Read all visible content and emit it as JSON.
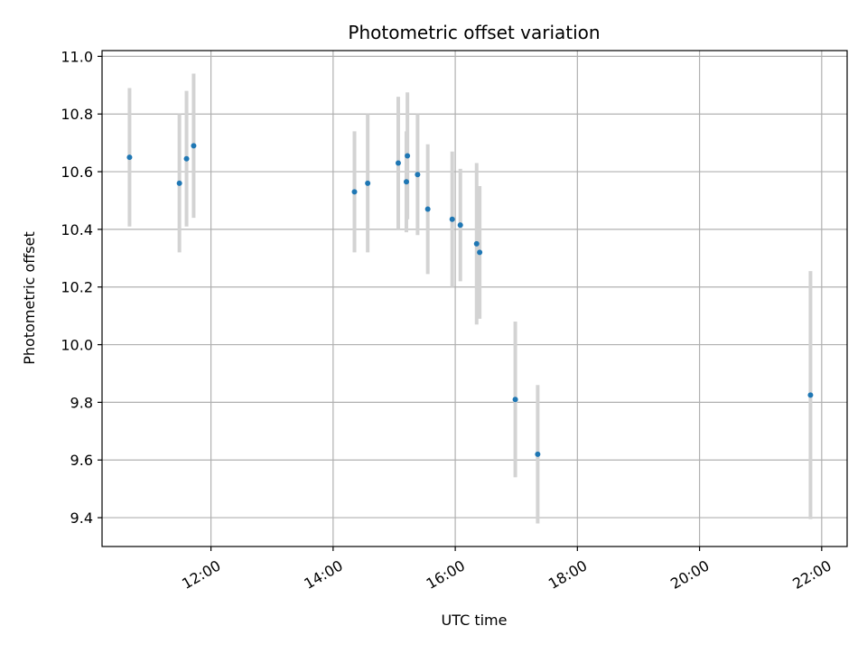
{
  "chart_data": {
    "type": "scatter",
    "title": "Photometric offset variation",
    "xlabel": "UTC time",
    "ylabel": "Photometric offset",
    "x_axis_type": "time-of-day",
    "xlim": [
      "10:13",
      "22:25"
    ],
    "ylim": [
      9.3,
      11.02
    ],
    "x_ticks": [
      "12:00",
      "14:00",
      "16:00",
      "18:00",
      "20:00",
      "22:00"
    ],
    "y_ticks": [
      9.4,
      9.6,
      9.8,
      10.0,
      10.2,
      10.4,
      10.6,
      10.8,
      11.0
    ],
    "grid": true,
    "legend": "none",
    "marker_color": "#1f77b4",
    "errorbar_color": "#d3d3d3",
    "series": [
      {
        "points": [
          {
            "x": "10:40",
            "y": 10.65,
            "err": 0.24
          },
          {
            "x": "11:29",
            "y": 10.56,
            "err": 0.24
          },
          {
            "x": "11:36",
            "y": 10.645,
            "err": 0.235
          },
          {
            "x": "11:43",
            "y": 10.69,
            "err": 0.25
          },
          {
            "x": "14:21",
            "y": 10.53,
            "err": 0.21
          },
          {
            "x": "14:34",
            "y": 10.56,
            "err": 0.24
          },
          {
            "x": "15:04",
            "y": 10.63,
            "err": 0.23
          },
          {
            "x": "15:12",
            "y": 10.565,
            "err": 0.175
          },
          {
            "x": "15:13",
            "y": 10.655,
            "err": 0.22
          },
          {
            "x": "15:23",
            "y": 10.59,
            "err": 0.21
          },
          {
            "x": "15:33",
            "y": 10.47,
            "err": 0.225
          },
          {
            "x": "15:57",
            "y": 10.435,
            "err": 0.235
          },
          {
            "x": "16:05",
            "y": 10.415,
            "err": 0.195
          },
          {
            "x": "16:21",
            "y": 10.35,
            "err": 0.28
          },
          {
            "x": "16:24",
            "y": 10.32,
            "err": 0.23
          },
          {
            "x": "16:59",
            "y": 9.81,
            "err": 0.27
          },
          {
            "x": "17:21",
            "y": 9.62,
            "err": 0.24
          },
          {
            "x": "21:49",
            "y": 9.825,
            "err": 0.43
          }
        ]
      }
    ]
  }
}
